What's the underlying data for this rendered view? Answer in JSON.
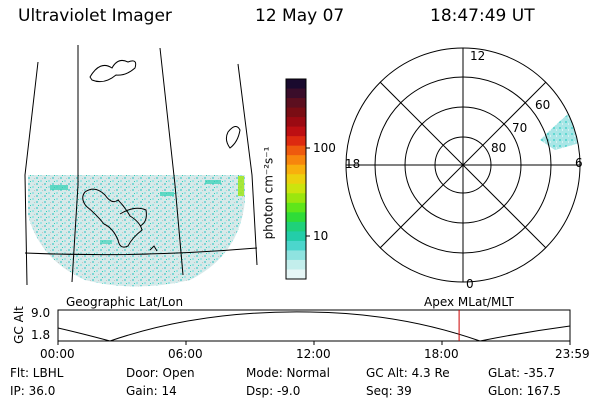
{
  "header": {
    "instrument": "Ultraviolet Imager",
    "date": "12 May 07",
    "time": "18:47:49 UT"
  },
  "colorbar": {
    "label": "photon cm⁻²s⁻¹",
    "ticks": [
      "100",
      "10"
    ],
    "colors": [
      "#1a0a2e",
      "#3a0d2a",
      "#5c0f1f",
      "#7a0d14",
      "#9b0a12",
      "#bd0f12",
      "#dd2a10",
      "#ee5a0e",
      "#f7860d",
      "#f8b00d",
      "#ecd10e",
      "#cce40e",
      "#9be60e",
      "#5fe61a",
      "#2fdc38",
      "#1fd17a",
      "#23cda9",
      "#4cd6cc",
      "#8fe3e0",
      "#c3eeec",
      "#e6f6f6"
    ]
  },
  "polar": {
    "lat_labels": [
      "60",
      "70",
      "80"
    ],
    "mlt_labels": {
      "top": "12",
      "bottom": "0",
      "left": "18",
      "right": "6"
    }
  },
  "panels": {
    "left_caption": "Geographic Lat/Lon",
    "right_caption": "Apex MLat/MLT"
  },
  "orbit_plot": {
    "ylabel": "GC Alt",
    "yticks": [
      "9.0",
      "1.8"
    ],
    "xticks": [
      "00:00",
      "06:00",
      "12:00",
      "18:00",
      "23:59"
    ],
    "current_time_hours": 18.8,
    "marker_color": "#cc0000"
  },
  "info": {
    "filter": "Flt: LBHL",
    "ip": "IP: 36.0",
    "door": "Door: Open",
    "gain": "Gain: 14",
    "mode": "Mode: Normal",
    "dsp": "Dsp:   -9.0",
    "gc_alt": "GC Alt: 4.3 Re",
    "seq": "Seq: 39",
    "glat": "GLat: -35.7",
    "glon": "GLon: 167.5"
  }
}
